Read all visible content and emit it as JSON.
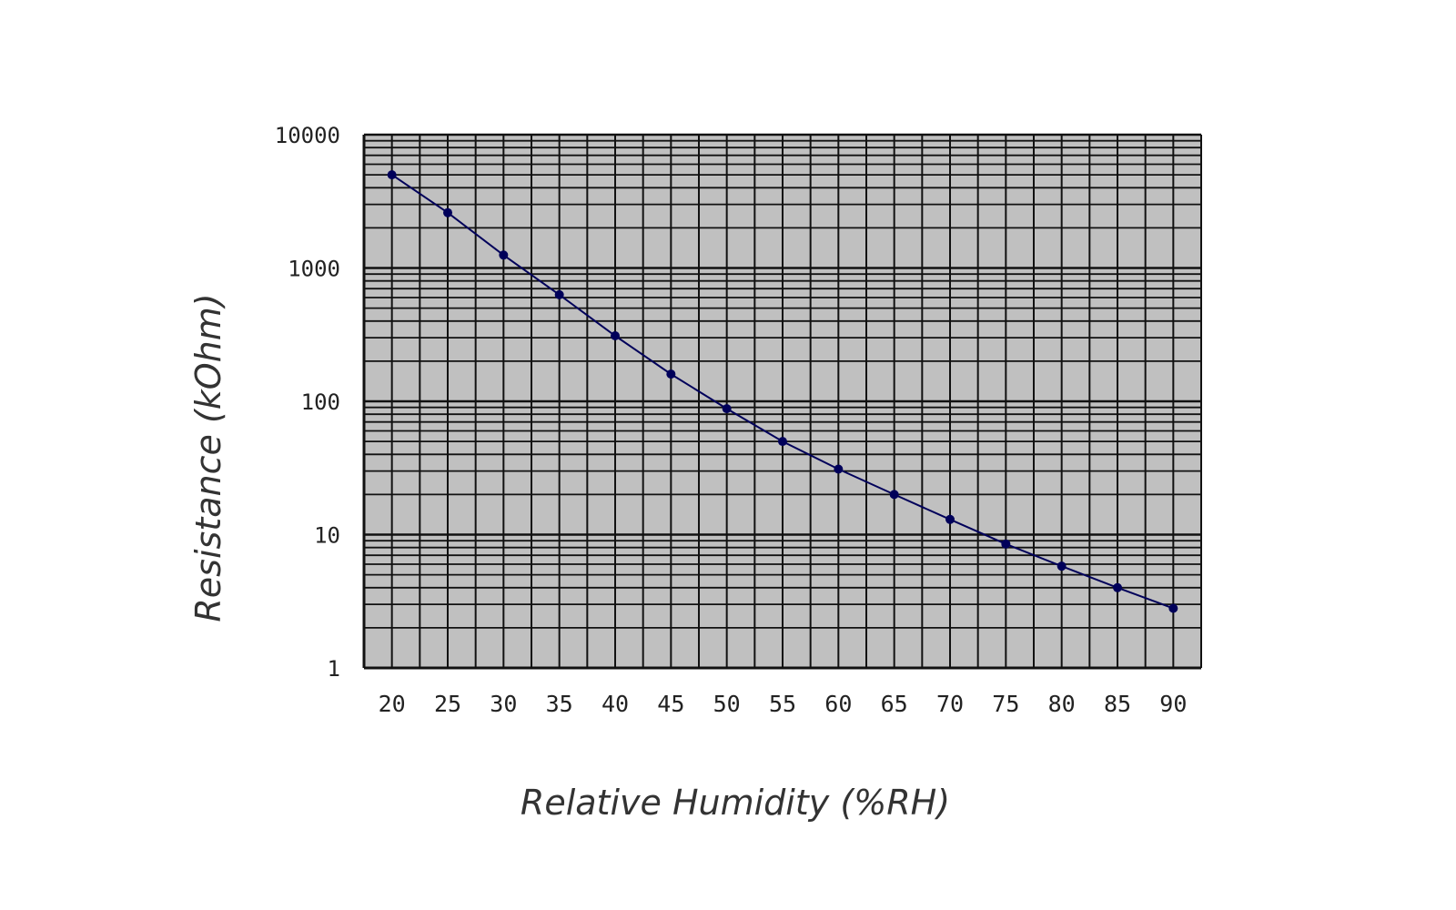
{
  "chart_data": {
    "type": "line",
    "title": "",
    "xlabel": "Relative Humidity (%RH)",
    "ylabel": "Resistance (kOhm)",
    "x_scale": "linear",
    "y_scale": "log",
    "xlim": [
      17.5,
      92.5
    ],
    "ylim": [
      1,
      10000
    ],
    "x_ticks": [
      20,
      25,
      30,
      35,
      40,
      45,
      50,
      55,
      60,
      65,
      70,
      75,
      80,
      85,
      90
    ],
    "y_ticks": [
      1,
      10,
      100,
      1000,
      10000
    ],
    "grid": true,
    "plot_background": "#c0c0c0",
    "grid_color": "#111111",
    "series": [
      {
        "color": "#00005a",
        "x": [
          20,
          25,
          30,
          35,
          40,
          45,
          50,
          55,
          60,
          65,
          70,
          75,
          80,
          85,
          90
        ],
        "y": [
          5000,
          2600,
          1250,
          630,
          310,
          160,
          88,
          50,
          31,
          20,
          13,
          8.5,
          5.8,
          4.0,
          2.8
        ]
      }
    ]
  }
}
